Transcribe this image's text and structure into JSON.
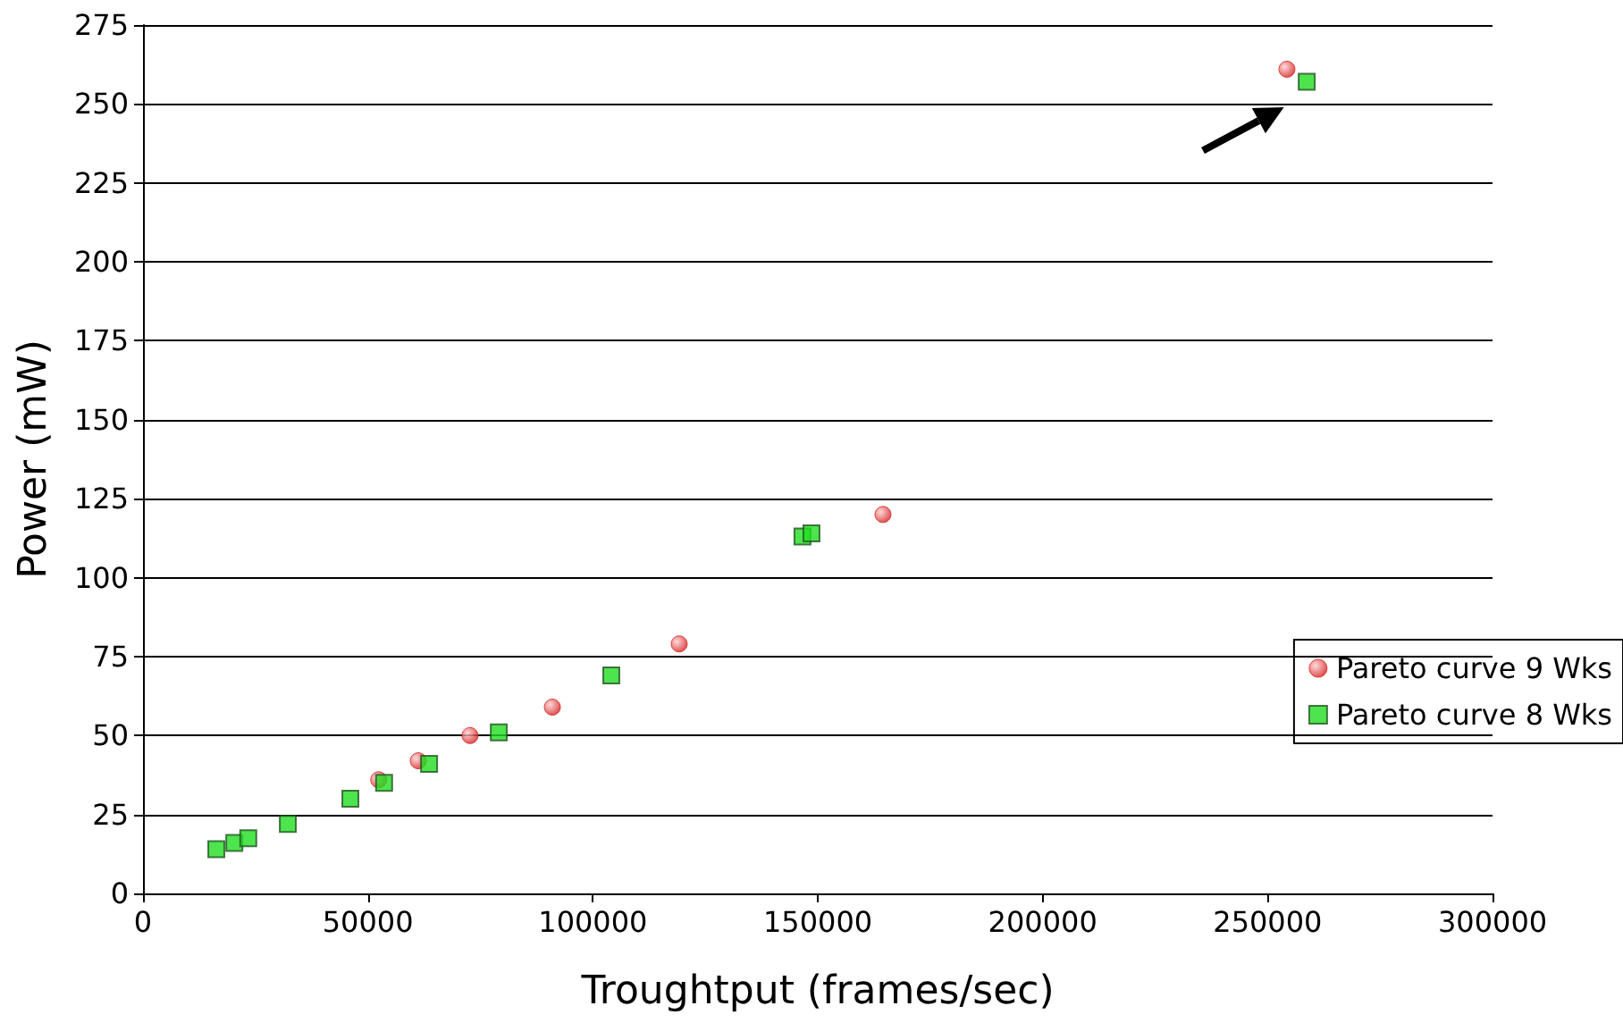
{
  "chart_data": {
    "type": "scatter",
    "xlabel": "Troughtput (frames/sec)",
    "ylabel": "Power (mW)",
    "xlim": [
      0,
      300000
    ],
    "xticks": [
      0,
      50000,
      100000,
      150000,
      200000,
      250000,
      300000
    ],
    "ylim": [
      0,
      275
    ],
    "yticks": [
      0,
      25,
      50,
      75,
      100,
      125,
      150,
      175,
      200,
      225,
      250,
      275
    ],
    "grid": "y",
    "legend": "right",
    "series": [
      {
        "name": "Pareto curve 9 Wks",
        "color": "#d42020",
        "marker": "circle",
        "x": [
          52400,
          61200,
          72700,
          91000,
          119200,
          164500,
          254300
        ],
        "values": [
          36,
          42,
          50,
          59,
          79,
          120,
          261
        ]
      },
      {
        "name": "Pareto curve 8 Wks",
        "color": "#22dd22",
        "marker": "square",
        "x": [
          16300,
          20300,
          23400,
          32200,
          46100,
          53600,
          63600,
          79100,
          104100,
          146600,
          148600,
          258700
        ],
        "values": [
          14,
          16,
          17.5,
          22,
          30,
          35,
          41,
          51,
          69,
          113,
          114,
          257
        ]
      }
    ]
  }
}
